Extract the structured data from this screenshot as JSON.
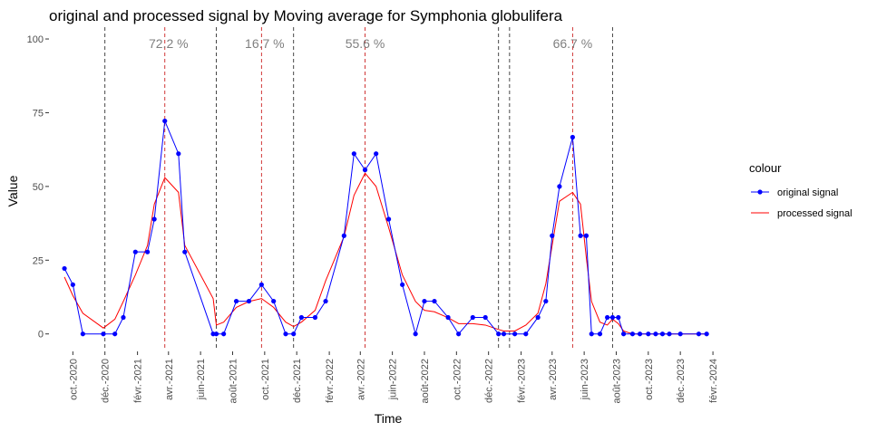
{
  "chart_data": {
    "type": "line",
    "title": "original and processed signal by Moving average for Symphonia globulifera",
    "xlabel": "Time",
    "ylabel": "Value",
    "ylim": [
      -5,
      104
    ],
    "xlim": [
      "2020-08-20",
      "2024-02-25"
    ],
    "y_ticks": [
      0,
      25,
      50,
      75,
      100
    ],
    "x_ticks": [
      {
        "date": "2020-10-01",
        "label": "oct.-2020"
      },
      {
        "date": "2020-12-01",
        "label": "déc.-2020"
      },
      {
        "date": "2021-02-01",
        "label": "févr.-2021"
      },
      {
        "date": "2021-04-01",
        "label": "avr.-2021"
      },
      {
        "date": "2021-06-01",
        "label": "juin-2021"
      },
      {
        "date": "2021-08-01",
        "label": "août-2021"
      },
      {
        "date": "2021-10-01",
        "label": "oct.-2021"
      },
      {
        "date": "2021-12-01",
        "label": "déc.-2021"
      },
      {
        "date": "2022-02-01",
        "label": "févr.-2022"
      },
      {
        "date": "2022-04-01",
        "label": "avr.-2022"
      },
      {
        "date": "2022-06-01",
        "label": "juin-2022"
      },
      {
        "date": "2022-08-01",
        "label": "août-2022"
      },
      {
        "date": "2022-10-01",
        "label": "oct.-2022"
      },
      {
        "date": "2022-12-01",
        "label": "déc.-2022"
      },
      {
        "date": "2023-02-01",
        "label": "févr.-2023"
      },
      {
        "date": "2023-04-01",
        "label": "avr.-2023"
      },
      {
        "date": "2023-06-01",
        "label": "juin-2023"
      },
      {
        "date": "2023-08-01",
        "label": "août-2023"
      },
      {
        "date": "2023-10-01",
        "label": "oct.-2023"
      },
      {
        "date": "2023-12-01",
        "label": "déc.-2023"
      },
      {
        "date": "2024-02-01",
        "label": "févr.-2024"
      }
    ],
    "grid": false,
    "legend_placement": "right",
    "legend_title": "colour",
    "series": [
      {
        "name": "original signal",
        "color": "#0000ff",
        "marker": "point",
        "points": [
          [
            "2020-09-15",
            22.2
          ],
          [
            "2020-10-01",
            16.7
          ],
          [
            "2020-10-20",
            0
          ],
          [
            "2020-11-28",
            0
          ],
          [
            "2020-12-20",
            0
          ],
          [
            "2021-01-05",
            5.6
          ],
          [
            "2021-01-28",
            27.8
          ],
          [
            "2021-02-20",
            27.8
          ],
          [
            "2021-03-05",
            38.9
          ],
          [
            "2021-03-25",
            72.2
          ],
          [
            "2021-04-20",
            61.1
          ],
          [
            "2021-05-02",
            27.8
          ],
          [
            "2021-06-25",
            0
          ],
          [
            "2021-07-01",
            0
          ],
          [
            "2021-07-15",
            0
          ],
          [
            "2021-08-08",
            11.1
          ],
          [
            "2021-09-01",
            11.1
          ],
          [
            "2021-09-25",
            16.7
          ],
          [
            "2021-10-18",
            11.1
          ],
          [
            "2021-11-10",
            0
          ],
          [
            "2021-11-25",
            0
          ],
          [
            "2021-12-10",
            5.6
          ],
          [
            "2022-01-05",
            5.6
          ],
          [
            "2022-01-25",
            11.1
          ],
          [
            "2022-03-01",
            33.3
          ],
          [
            "2022-03-20",
            61.1
          ],
          [
            "2022-04-10",
            55.6
          ],
          [
            "2022-05-01",
            61.1
          ],
          [
            "2022-05-25",
            38.9
          ],
          [
            "2022-06-20",
            16.7
          ],
          [
            "2022-07-15",
            0
          ],
          [
            "2022-08-01",
            11.1
          ],
          [
            "2022-08-20",
            11.1
          ],
          [
            "2022-09-15",
            5.6
          ],
          [
            "2022-10-05",
            0
          ],
          [
            "2022-11-01",
            5.6
          ],
          [
            "2022-11-25",
            5.6
          ],
          [
            "2022-12-20",
            0
          ],
          [
            "2022-12-30",
            0
          ],
          [
            "2023-01-20",
            0
          ],
          [
            "2023-02-10",
            0
          ],
          [
            "2023-03-05",
            5.6
          ],
          [
            "2023-03-20",
            11.1
          ],
          [
            "2023-04-01",
            33.3
          ],
          [
            "2023-04-15",
            50
          ],
          [
            "2023-05-10",
            66.7
          ],
          [
            "2023-05-25",
            33.3
          ],
          [
            "2023-06-05",
            33.3
          ],
          [
            "2023-06-15",
            0
          ],
          [
            "2023-07-01",
            0
          ],
          [
            "2023-07-15",
            5.6
          ],
          [
            "2023-07-25",
            5.6
          ],
          [
            "2023-08-05",
            5.6
          ],
          [
            "2023-08-15",
            0
          ],
          [
            "2023-09-01",
            0
          ],
          [
            "2023-09-15",
            0
          ],
          [
            "2023-10-01",
            0
          ],
          [
            "2023-10-15",
            0
          ],
          [
            "2023-10-28",
            0
          ],
          [
            "2023-11-10",
            0
          ],
          [
            "2023-12-01",
            0
          ],
          [
            "2024-01-05",
            0
          ],
          [
            "2024-01-20",
            0
          ]
        ]
      },
      {
        "name": "processed signal",
        "color": "#ff0000",
        "marker": "none",
        "points": [
          [
            "2020-09-15",
            19.3
          ],
          [
            "2020-10-01",
            13
          ],
          [
            "2020-10-20",
            7
          ],
          [
            "2020-11-28",
            2
          ],
          [
            "2020-12-20",
            5
          ],
          [
            "2021-01-05",
            11
          ],
          [
            "2021-01-28",
            20
          ],
          [
            "2021-02-20",
            30
          ],
          [
            "2021-03-05",
            44
          ],
          [
            "2021-03-25",
            53
          ],
          [
            "2021-04-20",
            48
          ],
          [
            "2021-05-02",
            30
          ],
          [
            "2021-06-25",
            12
          ],
          [
            "2021-07-01",
            3
          ],
          [
            "2021-07-15",
            4
          ],
          [
            "2021-08-08",
            9
          ],
          [
            "2021-09-01",
            11
          ],
          [
            "2021-09-25",
            12
          ],
          [
            "2021-10-18",
            9
          ],
          [
            "2021-11-10",
            4
          ],
          [
            "2021-11-25",
            2.5
          ],
          [
            "2021-12-10",
            4
          ],
          [
            "2022-01-05",
            8
          ],
          [
            "2022-01-25",
            18
          ],
          [
            "2022-03-01",
            33
          ],
          [
            "2022-03-20",
            47
          ],
          [
            "2022-04-10",
            54.5
          ],
          [
            "2022-05-01",
            50
          ],
          [
            "2022-05-25",
            36
          ],
          [
            "2022-06-20",
            20
          ],
          [
            "2022-07-15",
            11
          ],
          [
            "2022-08-01",
            8
          ],
          [
            "2022-08-20",
            7.5
          ],
          [
            "2022-09-15",
            5.5
          ],
          [
            "2022-10-05",
            3.5
          ],
          [
            "2022-11-01",
            3.5
          ],
          [
            "2022-11-25",
            3
          ],
          [
            "2022-12-20",
            1.5
          ],
          [
            "2022-12-30",
            1
          ],
          [
            "2023-01-20",
            1
          ],
          [
            "2023-02-10",
            3
          ],
          [
            "2023-03-05",
            7
          ],
          [
            "2023-03-20",
            17
          ],
          [
            "2023-04-01",
            30
          ],
          [
            "2023-04-15",
            45
          ],
          [
            "2023-05-10",
            48
          ],
          [
            "2023-05-25",
            44
          ],
          [
            "2023-06-05",
            26
          ],
          [
            "2023-06-15",
            11
          ],
          [
            "2023-07-01",
            4
          ],
          [
            "2023-07-15",
            3
          ],
          [
            "2023-07-25",
            5
          ],
          [
            "2023-08-05",
            3.5
          ],
          [
            "2023-08-15",
            1
          ],
          [
            "2023-09-01",
            0
          ],
          [
            "2023-09-15",
            0
          ],
          [
            "2023-10-01",
            0
          ],
          [
            "2023-10-15",
            0
          ],
          [
            "2023-10-28",
            0
          ],
          [
            "2023-11-10",
            0
          ],
          [
            "2023-12-01",
            0
          ],
          [
            "2024-01-05",
            0
          ],
          [
            "2024-01-20",
            0
          ]
        ]
      }
    ],
    "vlines": [
      {
        "date": "2020-12-01",
        "color": "#333333",
        "style": "dashed"
      },
      {
        "date": "2021-03-25",
        "color": "#cc2222",
        "style": "dashed"
      },
      {
        "date": "2021-07-01",
        "color": "#333333",
        "style": "dashed"
      },
      {
        "date": "2021-09-25",
        "color": "#cc2222",
        "style": "dashed"
      },
      {
        "date": "2021-11-25",
        "color": "#333333",
        "style": "dashed"
      },
      {
        "date": "2022-04-10",
        "color": "#cc2222",
        "style": "dashed"
      },
      {
        "date": "2022-12-20",
        "color": "#333333",
        "style": "dashed"
      },
      {
        "date": "2023-01-10",
        "color": "#333333",
        "style": "dashed"
      },
      {
        "date": "2023-05-10",
        "color": "#cc2222",
        "style": "dashed"
      },
      {
        "date": "2023-07-25",
        "color": "#333333",
        "style": "dashed"
      }
    ],
    "annotations": [
      {
        "date": "2021-04-01",
        "y": 98.5,
        "text": "72.2 %"
      },
      {
        "date": "2021-10-01",
        "y": 98.5,
        "text": "16.7 %"
      },
      {
        "date": "2022-04-10",
        "y": 98.5,
        "text": "55.6 %"
      },
      {
        "date": "2023-05-10",
        "y": 98.5,
        "text": "66.7 %"
      }
    ]
  }
}
